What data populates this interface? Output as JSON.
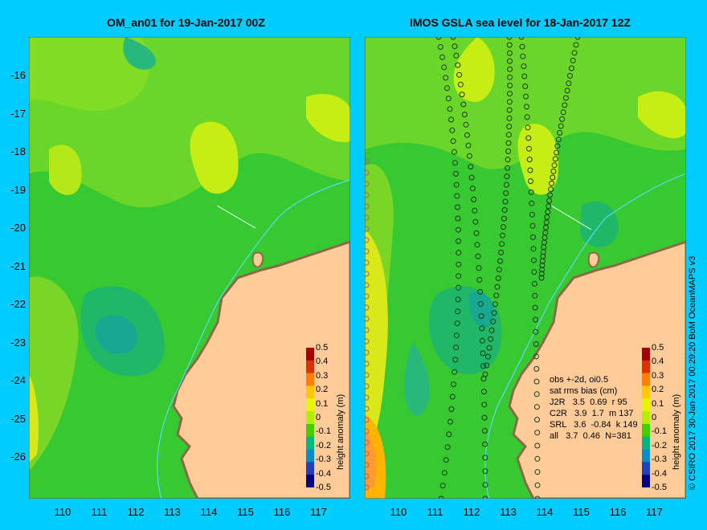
{
  "left_panel": {
    "title": "OM_an01 for 19-Jan-2017 00Z"
  },
  "right_panel": {
    "title": "IMOS GSLA sea level  for 18-Jan-2017 12Z",
    "stats": {
      "header1": "obs +-2d, oi0.5",
      "header2": "sat rms bias (cm)",
      "rows": [
        "J2R   3.5  0.69  r 95",
        "C2R   3.9  1.7  m 137",
        "SRL   3.6  -0.84  k 149",
        "all   3.7  0.46  N=381"
      ]
    }
  },
  "lat_ticks": [
    "-16",
    "-17",
    "-18",
    "-19",
    "-20",
    "-21",
    "-22",
    "-23",
    "-24",
    "-25",
    "-26"
  ],
  "lon_ticks": [
    "110",
    "111",
    "112",
    "113",
    "114",
    "115",
    "116",
    "117"
  ],
  "colorbar": {
    "label": "height anomaly (m)",
    "ticks": [
      "0.5",
      "0.4",
      "0.3",
      "0.2",
      "0.1",
      "0",
      "-0.1",
      "-0.2",
      "-0.3",
      "-0.4",
      "-0.5"
    ],
    "colors": [
      "#a50000",
      "#e03000",
      "#ff8000",
      "#ffc800",
      "#e6f500",
      "#b4ee00",
      "#40d000",
      "#00b880",
      "#0090d0",
      "#2040c0",
      "#000080"
    ]
  },
  "credit": "© CSIRO 2017   30-Jan-2017 00:29:20 BoM OceanMAPS v3",
  "colors": {
    "background": "#00ccff",
    "land": "#ffcc99",
    "coast": "#b08a60",
    "ocean_base": "#38c832",
    "cyan_track": "#55ddee"
  }
}
